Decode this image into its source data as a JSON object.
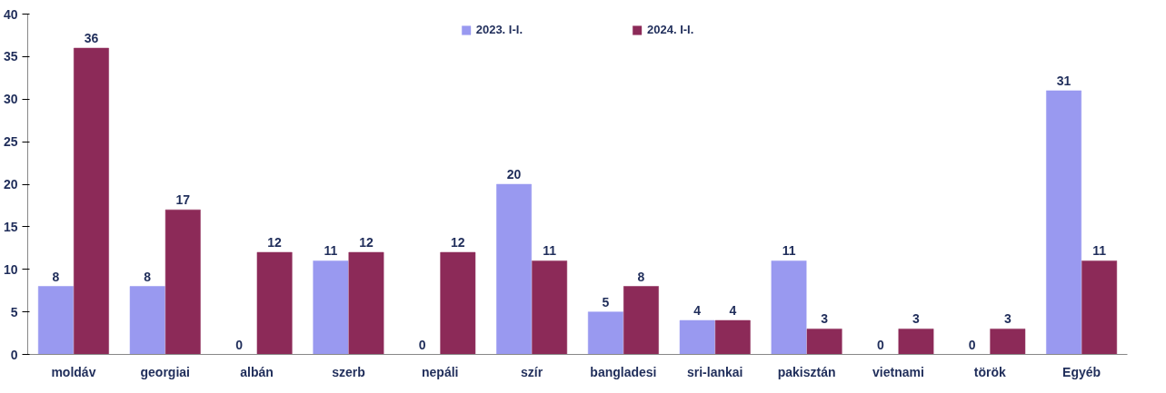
{
  "chart_data": {
    "type": "bar",
    "categories": [
      "moldáv",
      "georgiai",
      "albán",
      "szerb",
      "nepáli",
      "szír",
      "bangladesi",
      "sri-lankai",
      "pakisztán",
      "vietnami",
      "török",
      "Egyéb"
    ],
    "series": [
      {
        "name": "2023. I-I.",
        "color": "#9999f0",
        "values": [
          8,
          8,
          0,
          11,
          0,
          20,
          5,
          4,
          11,
          0,
          0,
          31
        ]
      },
      {
        "name": "2024. I-I.",
        "color": "#8c2a58",
        "values": [
          36,
          17,
          12,
          12,
          12,
          11,
          8,
          4,
          3,
          3,
          3,
          11
        ]
      }
    ],
    "ylim": [
      0,
      40
    ],
    "yticks": [
      0,
      5,
      10,
      15,
      20,
      25,
      30,
      35,
      40
    ],
    "grid": false,
    "legend": "top",
    "data_labels": true
  }
}
